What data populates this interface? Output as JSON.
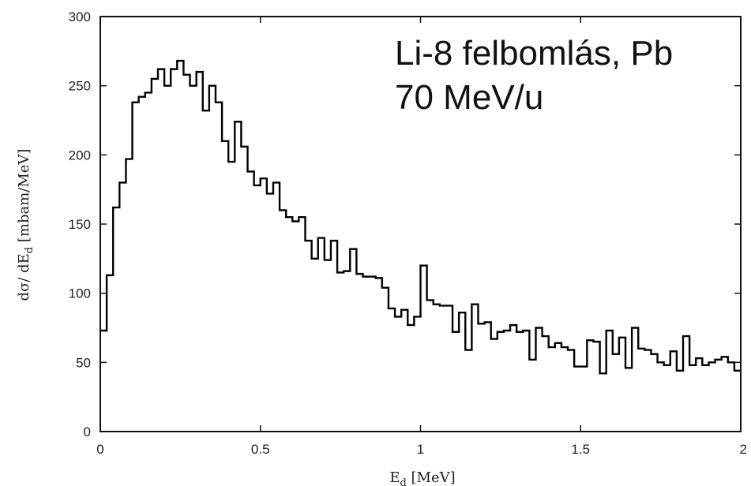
{
  "chart_data": {
    "type": "step",
    "title": "",
    "annotation_lines": [
      "Li-8 felbomlás, Pb",
      "70 MeV/u"
    ],
    "xlabel_main": "E",
    "xlabel_sub": "d",
    "xlabel_unit": " [MeV]",
    "ylabel_pre": "dσ/ dE",
    "ylabel_sub": "d",
    "ylabel_unit": " [mbam/MeV]",
    "xlim": [
      0,
      2
    ],
    "ylim": [
      0,
      300
    ],
    "x_ticks": [
      0,
      0.5,
      1,
      1.5,
      2
    ],
    "x_tick_labels": [
      "0",
      "0.5",
      "1",
      "1.5",
      "2"
    ],
    "y_ticks": [
      0,
      50,
      100,
      150,
      200,
      250,
      300
    ],
    "y_tick_labels": [
      "0",
      "50",
      "100",
      "150",
      "200",
      "250",
      "300"
    ],
    "grid": false,
    "line_color": "#000000",
    "bin_width": 0.02,
    "x_start": 0,
    "values": [
      73,
      113,
      162,
      180,
      197,
      238,
      242,
      245,
      255,
      262,
      250,
      262,
      268,
      258,
      250,
      260,
      232,
      250,
      238,
      210,
      195,
      224,
      206,
      188,
      178,
      183,
      172,
      180,
      160,
      155,
      152,
      155,
      138,
      125,
      140,
      124,
      138,
      115,
      116,
      132,
      114,
      112,
      112,
      111,
      104,
      89,
      83,
      88,
      77,
      83,
      120,
      95,
      92,
      91,
      91,
      72,
      86,
      59,
      92,
      78,
      79,
      67,
      72,
      73,
      77,
      72,
      73,
      52,
      75,
      69,
      61,
      64,
      61,
      59,
      47,
      47,
      66,
      65,
      42,
      73,
      56,
      68,
      46,
      75,
      60,
      59,
      56,
      50,
      48,
      58,
      44,
      69,
      48,
      53,
      48,
      50,
      52,
      54,
      50,
      44
    ]
  }
}
